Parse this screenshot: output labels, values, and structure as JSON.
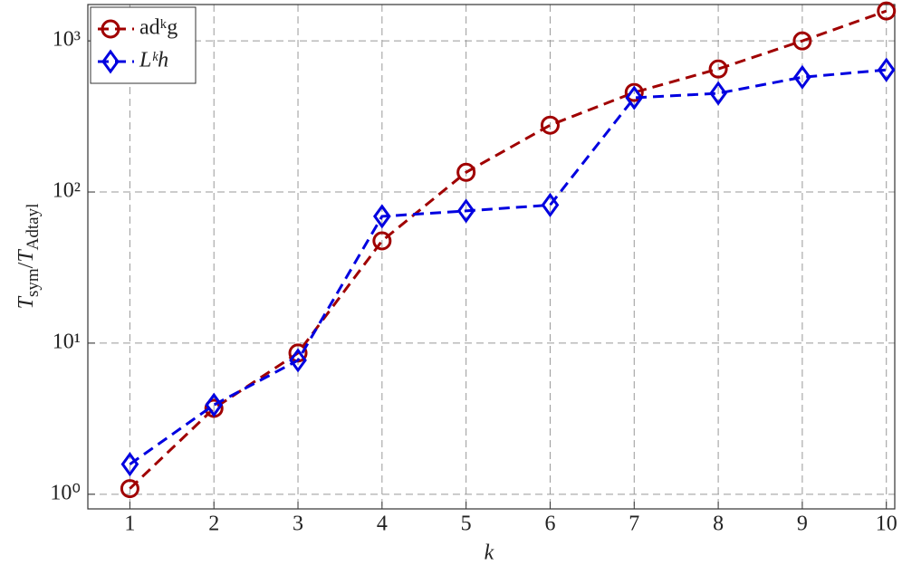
{
  "chart_data": {
    "type": "line",
    "xlabel": "k",
    "ylabel": [
      "T",
      "sym",
      "/",
      "T",
      "Adtayl"
    ],
    "x": [
      1,
      2,
      3,
      4,
      5,
      6,
      7,
      8,
      9,
      10
    ],
    "series": [
      {
        "name": "adᵏg",
        "color": "#a00000",
        "marker": "circle",
        "values": [
          1.09,
          3.7,
          8.6,
          47.5,
          135,
          277,
          456,
          652,
          1000,
          1577
        ]
      },
      {
        "name": "Lᵏh",
        "color": "#0000e0",
        "marker": "diamond",
        "values": [
          1.58,
          3.9,
          7.7,
          69,
          75,
          82,
          420,
          450,
          575,
          643
        ]
      }
    ],
    "xlim": [
      0.5,
      10.1
    ],
    "ylim": [
      0.8,
      1740
    ],
    "log_y": true,
    "xticks": [
      1,
      2,
      3,
      4,
      5,
      6,
      7,
      8,
      9,
      10
    ],
    "yticks": [
      {
        "value": 1,
        "label": "10⁰"
      },
      {
        "value": 10,
        "label": "10¹"
      },
      {
        "value": 100,
        "label": "10²"
      },
      {
        "value": 1000,
        "label": "10³"
      }
    ],
    "grid": true,
    "legend": "top-left"
  }
}
